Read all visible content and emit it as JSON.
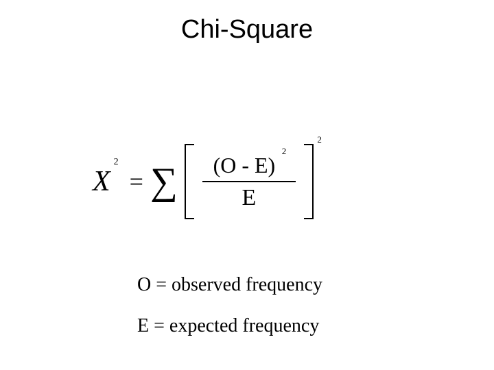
{
  "title": "Chi-Square",
  "formula": {
    "chi_symbol": "X",
    "chi_exponent": "2",
    "equals": "=",
    "sigma": "∑",
    "numerator": "(O - E)",
    "numerator_exponent": "2",
    "denominator": "E",
    "outer_exponent": "2"
  },
  "legend": {
    "observed": "O = observed frequency",
    "expected": "E = expected frequency"
  },
  "styling": {
    "background_color": "#ffffff",
    "text_color": "#000000",
    "title_fontsize": 38,
    "formula_fontsize": 36,
    "legend_fontsize": 28,
    "title_font": "Arial",
    "body_font": "Times New Roman"
  }
}
